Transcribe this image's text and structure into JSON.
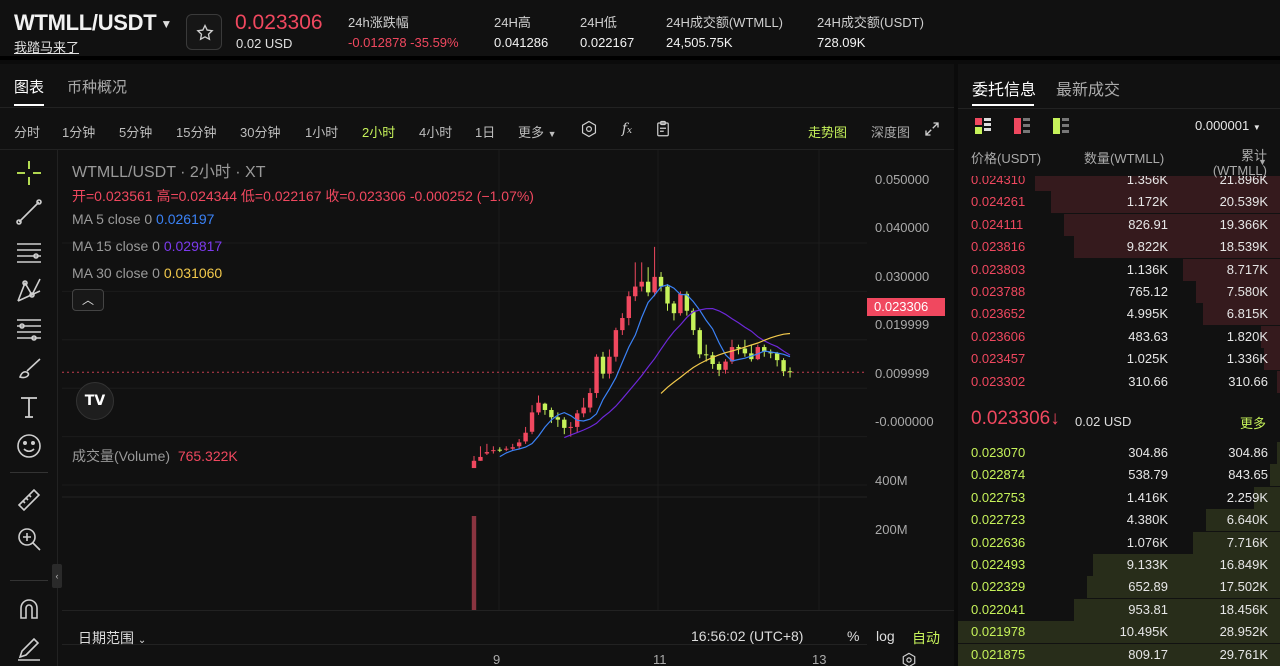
{
  "header": {
    "pair": "WTMLL/USDT",
    "sub_link": "我踏马来了",
    "last_price": "0.023306",
    "last_price_usd": "0.02 USD",
    "stats": [
      {
        "label": "24h涨跌幅",
        "value": "-0.012878 -35.59%"
      },
      {
        "label": "24H高",
        "value": "0.041286"
      },
      {
        "label": "24H低",
        "value": "0.022167"
      },
      {
        "label": "24H成交额(WTMLL)",
        "value": "24,505.75K"
      },
      {
        "label": "24H成交额(USDT)",
        "value": "728.09K"
      }
    ]
  },
  "chart_tabs": [
    "图表",
    "币种概况"
  ],
  "timeframes": [
    "分时",
    "1分钟",
    "5分钟",
    "15分钟",
    "30分钟",
    "1小时",
    "2小时",
    "4小时",
    "1日",
    "更多"
  ],
  "active_timeframe": "2小时",
  "view_modes": {
    "trend": "走势图",
    "depth": "深度图"
  },
  "legend": {
    "title": "WTMLL/USDT · 2小时 · XT",
    "ohlc": "开=0.023561  高=0.024344  低=0.022167  收=0.023306  -0.000252 (−1.07%)",
    "ma5": {
      "label": "MA 5 close 0",
      "value": "0.026197",
      "color": "#3b82f6"
    },
    "ma15": {
      "label": "MA 15 close 0",
      "value": "0.029817",
      "color": "#6d28d9"
    },
    "ma30": {
      "label": "MA 30 close 0",
      "value": "0.031060",
      "color": "#f2c94c"
    },
    "volume_label": "成交量(Volume)",
    "volume_value": "765.322K"
  },
  "price_axis": [
    "0.050000",
    "0.040000",
    "0.030000",
    "0.019999",
    "0.009999",
    "-0.000000"
  ],
  "current_price_tag": "0.023306",
  "volume_axis": [
    "400M",
    "200M"
  ],
  "time_axis": [
    "9",
    "11",
    "13"
  ],
  "bottom": {
    "date_range": "日期范围",
    "clock": "16:56:02 (UTC+8)",
    "percent": "%",
    "log": "log",
    "auto": "自动"
  },
  "chart_data": {
    "type": "candlestick",
    "price_range": [
      0,
      0.05
    ],
    "candles": [
      [
        0.005,
        0.006,
        0.0035,
        0.0035
      ],
      [
        0.0058,
        0.008,
        0.005,
        0.005
      ],
      [
        0.0068,
        0.0085,
        0.0062,
        0.0065
      ],
      [
        0.0072,
        0.008,
        0.0065,
        0.007
      ],
      [
        0.0072,
        0.0078,
        0.0068,
        0.0073
      ],
      [
        0.0075,
        0.008,
        0.007,
        0.0074
      ],
      [
        0.0078,
        0.0085,
        0.0072,
        0.0075
      ],
      [
        0.0088,
        0.0095,
        0.0075,
        0.008
      ],
      [
        0.0108,
        0.012,
        0.0085,
        0.009
      ],
      [
        0.015,
        0.0165,
        0.0105,
        0.011
      ],
      [
        0.017,
        0.0185,
        0.0145,
        0.015
      ],
      [
        0.0155,
        0.017,
        0.0145,
        0.0168
      ],
      [
        0.014,
        0.016,
        0.0128,
        0.0155
      ],
      [
        0.0135,
        0.015,
        0.012,
        0.014
      ],
      [
        0.0118,
        0.014,
        0.0105,
        0.0135
      ],
      [
        0.012,
        0.013,
        0.01,
        0.0118
      ],
      [
        0.0148,
        0.0155,
        0.0108,
        0.012
      ],
      [
        0.016,
        0.018,
        0.014,
        0.0148
      ],
      [
        0.019,
        0.02,
        0.015,
        0.016
      ],
      [
        0.0265,
        0.027,
        0.018,
        0.019
      ],
      [
        0.023,
        0.0275,
        0.022,
        0.0265
      ],
      [
        0.0265,
        0.028,
        0.022,
        0.023
      ],
      [
        0.032,
        0.0325,
        0.0255,
        0.0265
      ],
      [
        0.0345,
        0.0355,
        0.031,
        0.032
      ],
      [
        0.039,
        0.04,
        0.033,
        0.0345
      ],
      [
        0.041,
        0.046,
        0.038,
        0.039
      ],
      [
        0.042,
        0.046,
        0.04,
        0.041
      ],
      [
        0.0398,
        0.045,
        0.039,
        0.042
      ],
      [
        0.043,
        0.0492,
        0.039,
        0.0398
      ],
      [
        0.041,
        0.044,
        0.04,
        0.043
      ],
      [
        0.0375,
        0.0415,
        0.036,
        0.041
      ],
      [
        0.0355,
        0.038,
        0.034,
        0.0375
      ],
      [
        0.0395,
        0.04,
        0.035,
        0.0355
      ],
      [
        0.036,
        0.04,
        0.035,
        0.0395
      ],
      [
        0.032,
        0.0365,
        0.031,
        0.036
      ],
      [
        0.027,
        0.0325,
        0.0262,
        0.032
      ],
      [
        0.0268,
        0.029,
        0.0255,
        0.027
      ],
      [
        0.025,
        0.0275,
        0.024,
        0.0268
      ],
      [
        0.0238,
        0.0255,
        0.0225,
        0.025
      ],
      [
        0.0255,
        0.026,
        0.023,
        0.0238
      ],
      [
        0.0285,
        0.03,
        0.025,
        0.0255
      ],
      [
        0.0282,
        0.029,
        0.027,
        0.0285
      ],
      [
        0.0272,
        0.03,
        0.0265,
        0.0282
      ],
      [
        0.026,
        0.029,
        0.0255,
        0.0272
      ],
      [
        0.0285,
        0.029,
        0.0258,
        0.026
      ],
      [
        0.0275,
        0.029,
        0.0265,
        0.0285
      ],
      [
        0.0272,
        0.028,
        0.0262,
        0.0275
      ],
      [
        0.0258,
        0.0275,
        0.0245,
        0.0272
      ],
      [
        0.0235,
        0.0262,
        0.0225,
        0.0258
      ],
      [
        0.0233,
        0.0243,
        0.0222,
        0.0235
      ]
    ],
    "volume": [
      520,
      12,
      8,
      6,
      5,
      5,
      5,
      6,
      5,
      5,
      5,
      5,
      4,
      4,
      4,
      4,
      4,
      5,
      4,
      4,
      5,
      5,
      4,
      4,
      5,
      4,
      4,
      5,
      4,
      4,
      4,
      4,
      4,
      4,
      4,
      4,
      4,
      4,
      4,
      4,
      4,
      4,
      4,
      4,
      4,
      4,
      4,
      4,
      4,
      4
    ],
    "volume_range": [
      0,
      520
    ]
  },
  "orderbook": {
    "tabs": [
      "委托信息",
      "最新成交"
    ],
    "precision": "0.000001",
    "headers": {
      "price": "价格(USDT)",
      "qty": "数量(WTMLL)",
      "total": "累计\n(WTMLL)"
    },
    "asks": [
      {
        "price": "0.024310",
        "qty": "1.356K",
        "total": "21.896K",
        "depth": 0.76
      },
      {
        "price": "0.024261",
        "qty": "1.172K",
        "total": "20.539K",
        "depth": 0.71
      },
      {
        "price": "0.024111",
        "qty": "826.91",
        "total": "19.366K",
        "depth": 0.67
      },
      {
        "price": "0.023816",
        "qty": "9.822K",
        "total": "18.539K",
        "depth": 0.64
      },
      {
        "price": "0.023803",
        "qty": "1.136K",
        "total": "8.717K",
        "depth": 0.3
      },
      {
        "price": "0.023788",
        "qty": "765.12",
        "total": "7.580K",
        "depth": 0.26
      },
      {
        "price": "0.023652",
        "qty": "4.995K",
        "total": "6.815K",
        "depth": 0.24
      },
      {
        "price": "0.023606",
        "qty": "483.63",
        "total": "1.820K",
        "depth": 0.06
      },
      {
        "price": "0.023457",
        "qty": "1.025K",
        "total": "1.336K",
        "depth": 0.05
      },
      {
        "price": "0.023302",
        "qty": "310.66",
        "total": "310.66",
        "depth": 0.01
      }
    ],
    "mid_price": "0.023306↓",
    "mid_usd": "0.02 USD",
    "more": "更多",
    "bids": [
      {
        "price": "0.023070",
        "qty": "304.86",
        "total": "304.86",
        "depth": 0.01
      },
      {
        "price": "0.022874",
        "qty": "538.79",
        "total": "843.65",
        "depth": 0.03
      },
      {
        "price": "0.022753",
        "qty": "1.416K",
        "total": "2.259K",
        "depth": 0.08
      },
      {
        "price": "0.022723",
        "qty": "4.380K",
        "total": "6.640K",
        "depth": 0.23
      },
      {
        "price": "0.022636",
        "qty": "1.076K",
        "total": "7.716K",
        "depth": 0.27
      },
      {
        "price": "0.022493",
        "qty": "9.133K",
        "total": "16.849K",
        "depth": 0.58
      },
      {
        "price": "0.022329",
        "qty": "652.89",
        "total": "17.502K",
        "depth": 0.6
      },
      {
        "price": "0.022041",
        "qty": "953.81",
        "total": "18.456K",
        "depth": 0.64
      },
      {
        "price": "0.021978",
        "qty": "10.495K",
        "total": "28.952K",
        "depth": 1.0
      },
      {
        "price": "0.021875",
        "qty": "809.17",
        "total": "29.761K",
        "depth": 1.0
      }
    ]
  }
}
